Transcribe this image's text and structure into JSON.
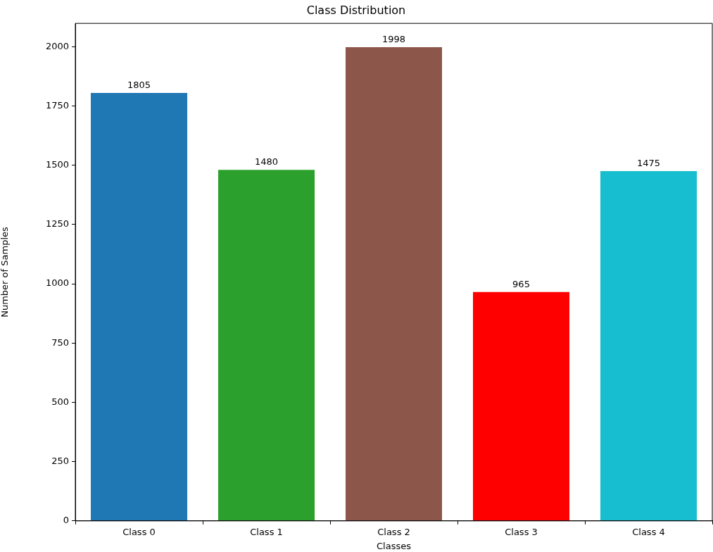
{
  "chart_data": {
    "type": "bar",
    "title": "Class Distribution",
    "xlabel": "Classes",
    "ylabel": "Number of Samples",
    "categories": [
      "Class 0",
      "Class 1",
      "Class 2",
      "Class 3",
      "Class 4"
    ],
    "values": [
      1805,
      1480,
      1998,
      965,
      1475
    ],
    "colors": [
      "#1f77b4",
      "#2ca02c",
      "#8c564b",
      "#ff0000",
      "#17becf"
    ],
    "ylim": [
      0,
      2098
    ],
    "yticks": [
      0,
      250,
      500,
      750,
      1000,
      1250,
      1500,
      1750,
      2000
    ],
    "data_labels": true,
    "grid": false,
    "legend": false
  }
}
